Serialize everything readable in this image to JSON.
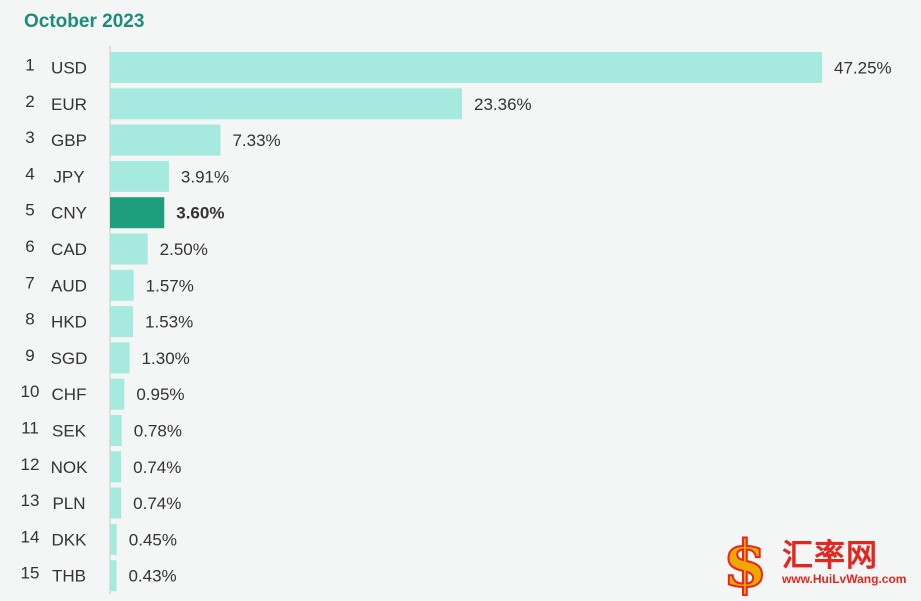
{
  "chart_data": {
    "type": "bar",
    "orientation": "horizontal",
    "title": "October 2023",
    "xlabel": "",
    "ylabel": "",
    "xlim": [
      0,
      47.25
    ],
    "grid": false,
    "highlight": "CNY",
    "categories": [
      "USD",
      "EUR",
      "GBP",
      "JPY",
      "CNY",
      "CAD",
      "AUD",
      "HKD",
      "SGD",
      "CHF",
      "SEK",
      "NOK",
      "PLN",
      "DKK",
      "THB"
    ],
    "ranks": [
      "1",
      "2",
      "3",
      "4",
      "5",
      "6",
      "7",
      "8",
      "9",
      "10",
      "11",
      "12",
      "13",
      "14",
      "15"
    ],
    "values": [
      47.25,
      23.36,
      7.33,
      3.91,
      3.6,
      2.5,
      1.57,
      1.53,
      1.3,
      0.95,
      0.78,
      0.74,
      0.74,
      0.45,
      0.43
    ],
    "value_labels": [
      "47.25%",
      "23.36%",
      "7.33%",
      "3.91%",
      "3.60%",
      "2.50%",
      "1.57%",
      "1.53%",
      "1.30%",
      "0.95%",
      "0.78%",
      "0.74%",
      "0.74%",
      "0.45%",
      "0.43%"
    ]
  },
  "colors": {
    "bar": "#a6e9de",
    "highlight_bar": "#1f9e7d",
    "title": "#1e8c7a",
    "text": "#333333",
    "axis": "#c9cccc"
  },
  "watermark": {
    "text": "汇率网",
    "url": "www.HuiLvWang.com",
    "icon": "dollar-logo"
  }
}
